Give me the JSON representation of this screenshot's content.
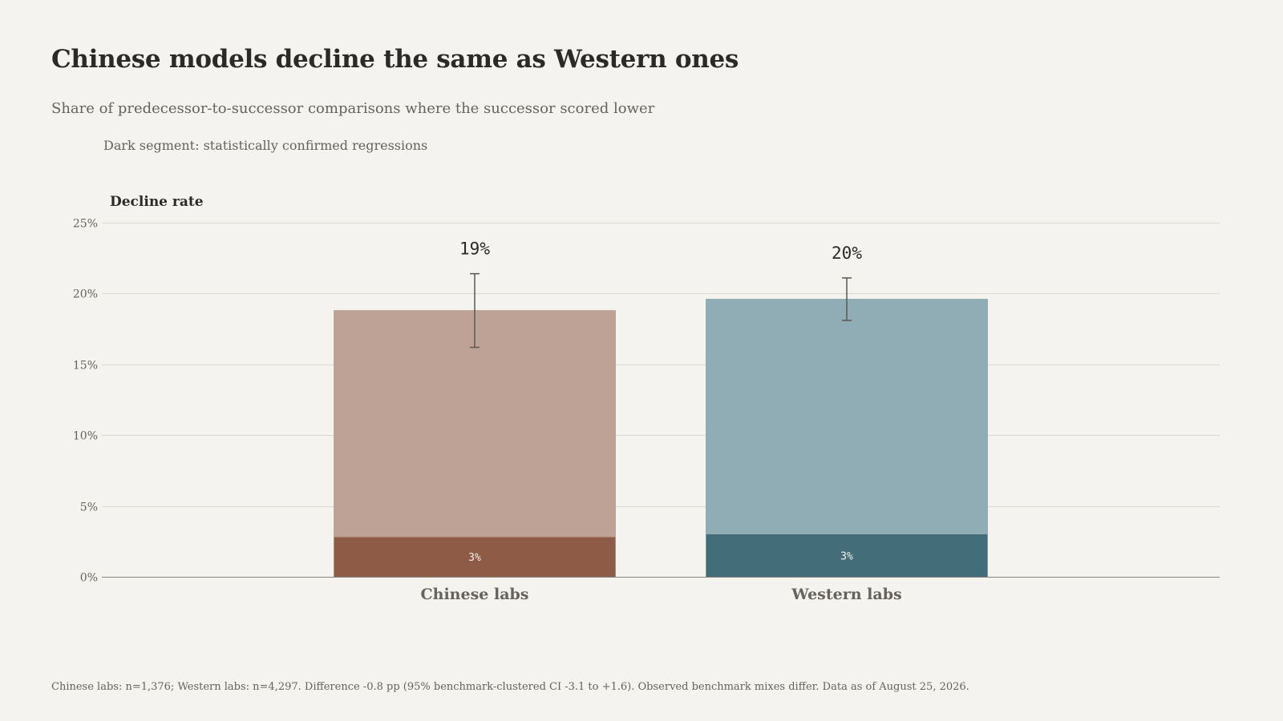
{
  "chart_data": {
    "type": "bar",
    "title": "Chinese models decline the same as Western ones",
    "subtitle": "Share of predecessor-to-successor comparisons where the successor scored lower",
    "note": "Dark segment: statistically confirmed regressions",
    "ylabel": "Decline rate",
    "xlabel": "",
    "ylim": [
      0,
      25
    ],
    "yticks": [
      0,
      5,
      10,
      15,
      20,
      25
    ],
    "ytick_labels": [
      "0%",
      "5%",
      "10%",
      "15%",
      "20%",
      "25%"
    ],
    "categories": [
      "Chinese labs",
      "Western labs"
    ],
    "values": [
      18.8,
      19.6
    ],
    "value_labels": [
      "19%",
      "20%"
    ],
    "confirmed_values": [
      2.8,
      3.0
    ],
    "confirmed_labels": [
      "3%",
      "3%"
    ],
    "ci_low": [
      16.2,
      18.1
    ],
    "ci_high": [
      21.4,
      21.1
    ],
    "colors": {
      "chinese_light": "#bda295",
      "chinese_dark": "#8d5b46",
      "western_light": "#90adb6",
      "western_dark": "#436d79"
    },
    "grid": true,
    "legend": "none",
    "footnote": "Chinese labs: n=1,376; Western labs: n=4,297. Difference -0.8 pp (95% benchmark-clustered CI -3.1 to +1.6). Observed benchmark mixes differ. Data as of August 25, 2026."
  }
}
